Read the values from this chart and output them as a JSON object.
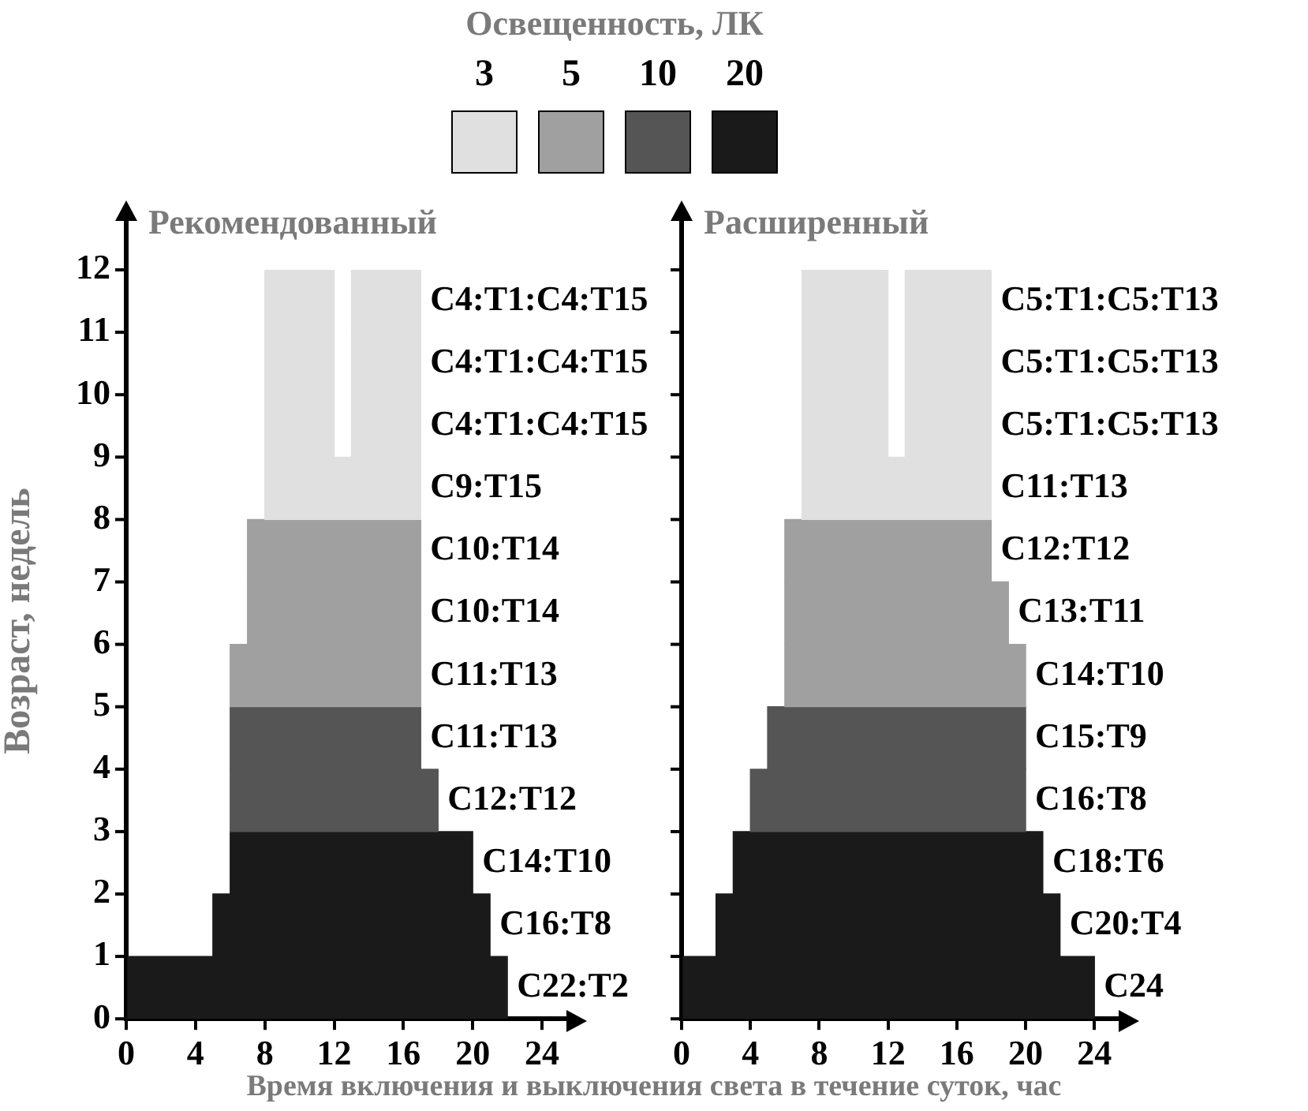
{
  "chart_data": [
    {
      "type": "bar",
      "orientation": "horizontal",
      "title": "Рекомендованный",
      "xlabel": "Время включения и выключения света в течение суток, час",
      "ylabel": "Возраст, недель",
      "legend_title": "Освещенность, ЛК",
      "legend": "top",
      "grid": false,
      "categories": [
        null,
        null,
        null,
        null,
        null,
        null,
        null,
        null,
        null,
        null,
        null,
        null
      ],
      "annotations": [
        "0",
        "1",
        "2",
        "3",
        "4",
        "5",
        "6",
        "7",
        "8",
        "9",
        "10",
        "11",
        "12"
      ],
      "xlim": [
        0,
        25.5
      ],
      "xticks": [
        0,
        4,
        8,
        12,
        16,
        20,
        24
      ],
      "series": [
        {
          "name": "3",
          "color": "#e0e0e0",
          "base": [
            8,
            8,
            8,
            8,
            null,
            null,
            null,
            null,
            null,
            null,
            null,
            null
          ],
          "values": [
            4,
            4,
            4,
            9,
            null,
            null,
            null,
            null,
            null,
            null,
            null,
            null
          ],
          "value_labels": [
            null,
            null,
            null,
            "С9:Т15",
            null,
            null,
            null,
            null,
            null,
            null,
            null,
            null
          ]
        },
        {
          "color": "#e0e0e0",
          "base": [
            13,
            13,
            13,
            null,
            null,
            null,
            null,
            null,
            null,
            null,
            null,
            null
          ],
          "values": [
            4,
            4,
            4,
            null,
            null,
            null,
            null,
            null,
            null,
            null,
            null,
            null
          ],
          "value_labels": [
            "С4:Т1:С4:Т15",
            "С4:Т1:С4:Т15",
            "С4:Т1:С4:Т15",
            null,
            null,
            null,
            null,
            null,
            null,
            null,
            null,
            null
          ]
        },
        {
          "name": "5",
          "color": "#a0a0a0",
          "base": [
            null,
            null,
            null,
            null,
            7,
            7,
            6,
            null,
            null,
            null,
            null,
            null
          ],
          "values": [
            null,
            null,
            null,
            null,
            10,
            10,
            11,
            null,
            null,
            null,
            null,
            null
          ],
          "value_labels": [
            null,
            null,
            null,
            null,
            "С10:Т14",
            "С10:Т14",
            "С11:Т13",
            null,
            null,
            null,
            null,
            null
          ]
        },
        {
          "name": "10",
          "color": "#555555",
          "base": [
            null,
            null,
            null,
            null,
            null,
            null,
            null,
            6,
            6,
            null,
            null,
            null
          ],
          "values": [
            null,
            null,
            null,
            null,
            null,
            null,
            null,
            11,
            12,
            null,
            null,
            null
          ],
          "value_labels": [
            null,
            null,
            null,
            null,
            null,
            null,
            null,
            "С11:Т13",
            "С12:Т12",
            null,
            null,
            null
          ]
        },
        {
          "name": "20",
          "color": "#1a1a1a",
          "base": [
            null,
            null,
            null,
            null,
            null,
            null,
            null,
            null,
            null,
            6,
            5,
            0
          ],
          "values": [
            null,
            null,
            null,
            null,
            null,
            null,
            null,
            null,
            null,
            14,
            16,
            22
          ],
          "value_labels": [
            null,
            null,
            null,
            null,
            null,
            null,
            null,
            null,
            null,
            "С14:Т10",
            "С16:Т8",
            "С22:Т2"
          ]
        }
      ]
    },
    {
      "type": "bar",
      "orientation": "horizontal",
      "title": "Расширенный",
      "grid": false,
      "categories": [
        null,
        null,
        null,
        null,
        null,
        null,
        null,
        null,
        null,
        null,
        null,
        null
      ],
      "xlim": [
        0,
        25.5
      ],
      "xticks": [
        0,
        4,
        8,
        12,
        16,
        20,
        24
      ],
      "series": [
        {
          "color": "#e0e0e0",
          "base": [
            7,
            7,
            7,
            7,
            null,
            null,
            null,
            null,
            null,
            null,
            null,
            null
          ],
          "values": [
            5,
            5,
            5,
            11,
            null,
            null,
            null,
            null,
            null,
            null,
            null,
            null
          ],
          "value_labels": [
            null,
            null,
            null,
            "С11:Т13",
            null,
            null,
            null,
            null,
            null,
            null,
            null,
            null
          ]
        },
        {
          "color": "#e0e0e0",
          "base": [
            13,
            13,
            13,
            null,
            null,
            null,
            null,
            null,
            null,
            null,
            null,
            null
          ],
          "values": [
            5,
            5,
            5,
            null,
            null,
            null,
            null,
            null,
            null,
            null,
            null,
            null
          ],
          "value_labels": [
            "С5:Т1:С5:Т13",
            "С5:Т1:С5:Т13",
            "С5:Т1:С5:Т13",
            null,
            null,
            null,
            null,
            null,
            null,
            null,
            null,
            null
          ]
        },
        {
          "color": "#a0a0a0",
          "base": [
            null,
            null,
            null,
            null,
            6,
            6,
            6,
            null,
            null,
            null,
            null,
            null
          ],
          "values": [
            null,
            null,
            null,
            null,
            12,
            13,
            14,
            null,
            null,
            null,
            null,
            null
          ],
          "value_labels": [
            null,
            null,
            null,
            null,
            "С12:Т12",
            "С13:Т11",
            "С14:Т10",
            null,
            null,
            null,
            null,
            null
          ]
        },
        {
          "color": "#555555",
          "base": [
            null,
            null,
            null,
            null,
            null,
            null,
            null,
            5,
            4,
            null,
            null,
            null
          ],
          "values": [
            null,
            null,
            null,
            null,
            null,
            null,
            null,
            15,
            16,
            null,
            null,
            null
          ],
          "value_labels": [
            null,
            null,
            null,
            null,
            null,
            null,
            null,
            "С15:Т9",
            "С16:Т8",
            null,
            null,
            null
          ]
        },
        {
          "color": "#1a1a1a",
          "base": [
            null,
            null,
            null,
            null,
            null,
            null,
            null,
            null,
            null,
            3,
            2,
            0
          ],
          "values": [
            null,
            null,
            null,
            null,
            null,
            null,
            null,
            null,
            null,
            18,
            20,
            24
          ],
          "value_labels": [
            null,
            null,
            null,
            null,
            null,
            null,
            null,
            null,
            null,
            "С18:Т6",
            "С20:Т4",
            "С24"
          ]
        }
      ]
    }
  ]
}
